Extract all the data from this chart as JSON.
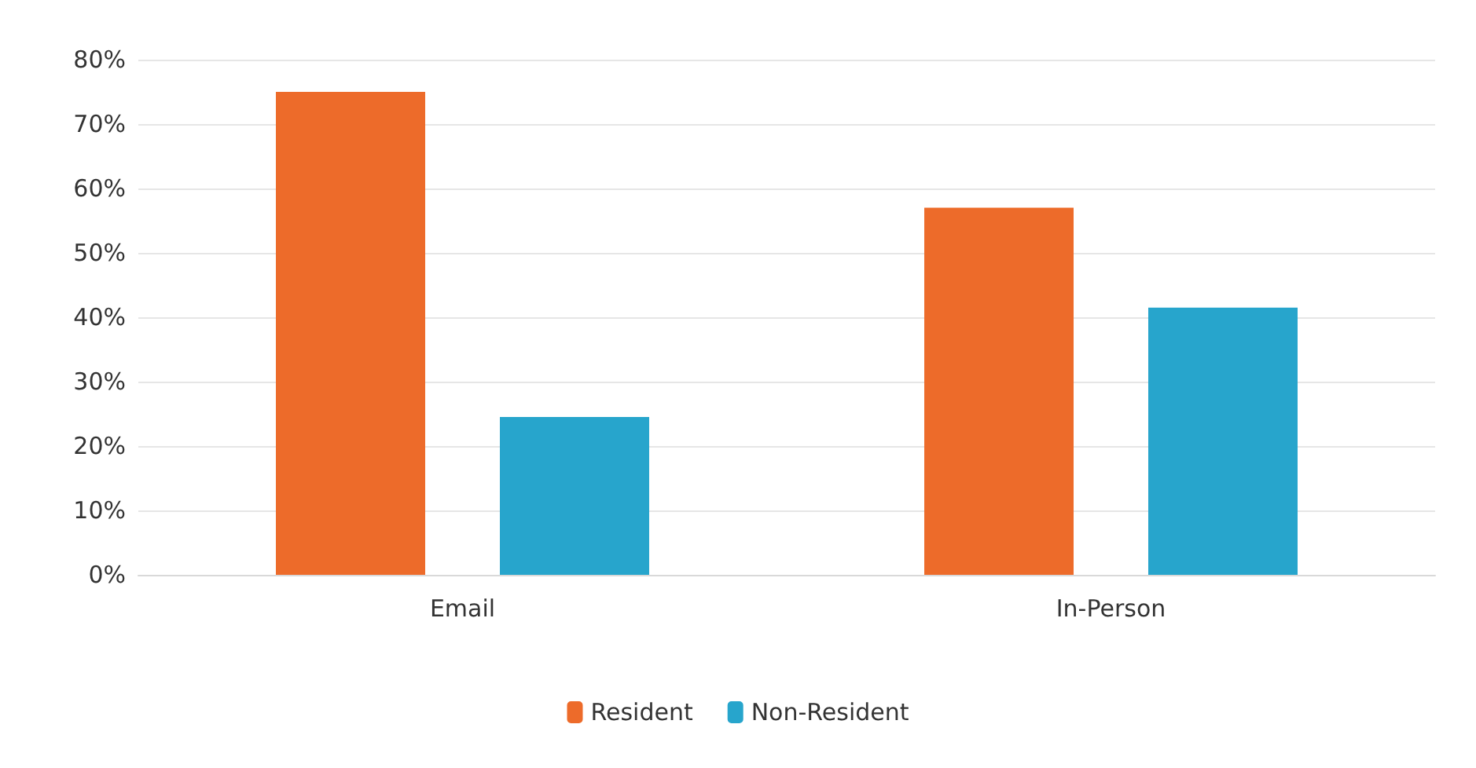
{
  "chart_data": {
    "type": "bar",
    "categories": [
      "Email",
      "In-Person"
    ],
    "series": [
      {
        "name": "Resident",
        "color": "#ed6b2a",
        "values": [
          75,
          57
        ]
      },
      {
        "name": "Non-Resident",
        "color": "#27a5cc",
        "values": [
          24.5,
          41.5
        ]
      }
    ],
    "ylim": [
      0,
      80
    ],
    "yticks": [
      {
        "value": 0,
        "label": "0%"
      },
      {
        "value": 10,
        "label": "10%"
      },
      {
        "value": 20,
        "label": "20%"
      },
      {
        "value": 30,
        "label": "30%"
      },
      {
        "value": 40,
        "label": "40%"
      },
      {
        "value": 50,
        "label": "50%"
      },
      {
        "value": 60,
        "label": "60%"
      },
      {
        "value": 70,
        "label": "70%"
      },
      {
        "value": 80,
        "label": "80%"
      }
    ],
    "grid": "y",
    "legend": "bottom"
  }
}
